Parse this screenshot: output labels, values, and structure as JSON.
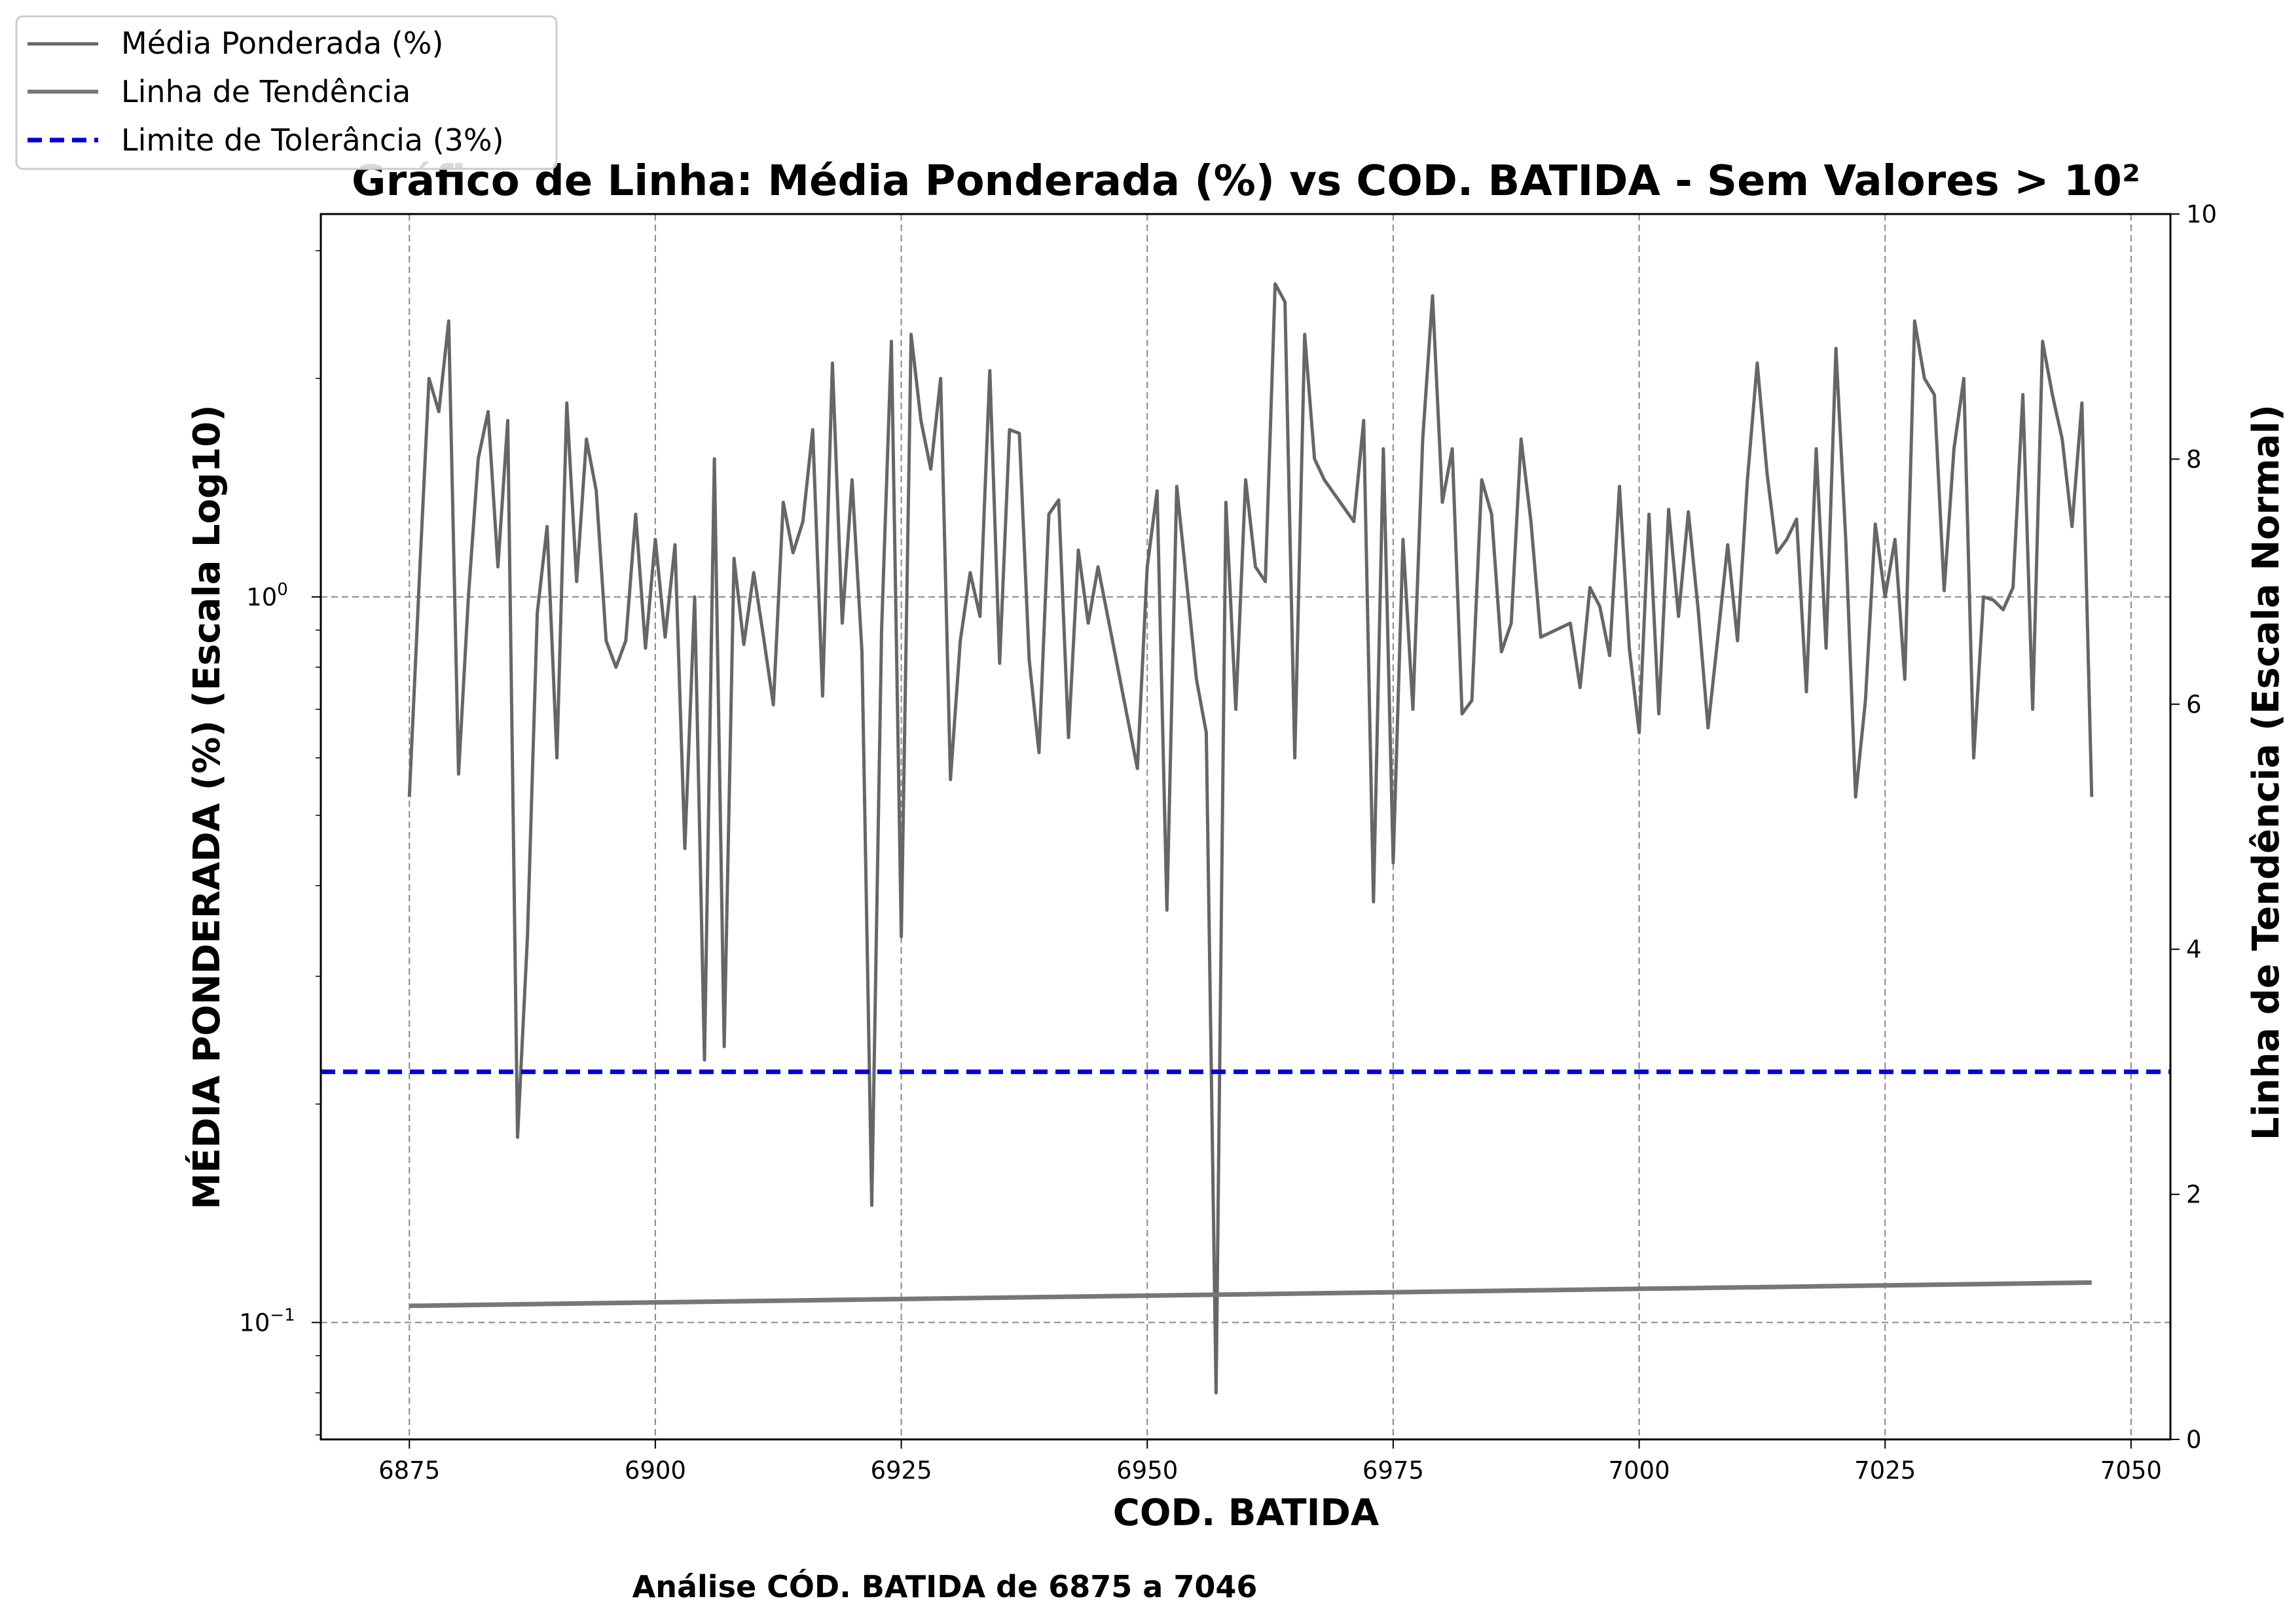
{
  "chart_data": {
    "type": "line",
    "title": "Gráfico de Linha: Média Ponderada (%) vs COD. BATIDA - Sem Valores > 10²",
    "subtitle": "Análise CÓD. BATIDA de 6875 a 7046",
    "xlabel": "COD. BATIDA",
    "ylabel": "MÉDIA PONDERADA (%) (Escala Log10)",
    "y2label": "Linha de Tendência (Escala Normal)",
    "xlim": [
      6866,
      7054
    ],
    "xticks": [
      6875,
      6900,
      6925,
      6950,
      6975,
      7000,
      7025,
      7050
    ],
    "xtick_labels": [
      "6875",
      "6900",
      "6925",
      "6950",
      "6975",
      "7000",
      "7025",
      "7050"
    ],
    "ylim": [
      0.069,
      3.37
    ],
    "yscale": "log",
    "yticks": [
      0.1,
      1.0
    ],
    "ytick_labels_log": [
      {
        "base": "10",
        "exp": "−1"
      },
      {
        "base": "10",
        "exp": "0"
      }
    ],
    "y2lim": [
      0,
      10
    ],
    "y2ticks": [
      0,
      2,
      4,
      6,
      8,
      10
    ],
    "y2tick_labels": [
      "0",
      "2",
      "4",
      "6",
      "8",
      "10"
    ],
    "grid": true,
    "legend_position": "top-left",
    "colors": {
      "series": "#666666",
      "trend": "#777777",
      "limit": "#0000dd",
      "grid": "#888888"
    },
    "series": [
      {
        "name": "Média Ponderada (%)",
        "x": [
          6875,
          6876,
          6877,
          6878,
          6879,
          6880,
          6881,
          6882,
          6883,
          6884,
          6885,
          6886,
          6887,
          6888,
          6889,
          6890,
          6891,
          6892,
          6893,
          6894,
          6895,
          6896,
          6897,
          6898,
          6899,
          6900,
          6901,
          6902,
          6903,
          6904,
          6905,
          6906,
          6907,
          6908,
          6909,
          6910,
          6911,
          6912,
          6913,
          6914,
          6915,
          6916,
          6917,
          6918,
          6919,
          6920,
          6921,
          6922,
          6923,
          6924,
          6925,
          6926,
          6927,
          6928,
          6929,
          6930,
          6931,
          6932,
          6933,
          6934,
          6935,
          6936,
          6937,
          6938,
          6939,
          6940,
          6941,
          6942,
          6943,
          6944,
          6945,
          6949,
          6950,
          6951,
          6952,
          6953,
          6954,
          6955,
          6956,
          6957,
          6958,
          6959,
          6960,
          6961,
          6962,
          6963,
          6964,
          6965,
          6966,
          6967,
          6968,
          6971,
          6972,
          6973,
          6974,
          6975,
          6976,
          6977,
          6978,
          6979,
          6980,
          6981,
          6982,
          6983,
          6984,
          6985,
          6986,
          6987,
          6988,
          6989,
          6990,
          6993,
          6994,
          6995,
          6996,
          6997,
          6998,
          6999,
          7000,
          7001,
          7002,
          7003,
          7004,
          7005,
          7006,
          7007,
          7008,
          7009,
          7010,
          7011,
          7012,
          7013,
          7014,
          7015,
          7016,
          7017,
          7018,
          7019,
          7020,
          7021,
          7022,
          7023,
          7024,
          7025,
          7026,
          7027,
          7028,
          7029,
          7030,
          7031,
          7032,
          7033,
          7034,
          7035,
          7036,
          7037,
          7038,
          7039,
          7040,
          7041,
          7042,
          7043,
          7044,
          7045,
          7046
        ],
        "y": [
          0.53,
          1.05,
          2.0,
          1.8,
          2.4,
          0.57,
          1.0,
          1.55,
          1.8,
          1.1,
          1.75,
          0.18,
          0.34,
          0.95,
          1.25,
          0.6,
          1.85,
          1.05,
          1.65,
          1.4,
          0.87,
          0.8,
          0.87,
          1.3,
          0.85,
          1.2,
          0.88,
          1.18,
          0.45,
          1.0,
          0.23,
          1.55,
          0.24,
          1.13,
          0.86,
          1.08,
          0.88,
          0.71,
          1.35,
          1.15,
          1.27,
          1.7,
          0.73,
          2.1,
          0.92,
          1.45,
          0.84,
          0.145,
          0.9,
          2.25,
          0.34,
          2.3,
          1.75,
          1.5,
          2.0,
          0.56,
          0.87,
          1.08,
          0.94,
          2.05,
          0.81,
          1.7,
          1.68,
          0.82,
          0.61,
          1.3,
          1.36,
          0.64,
          1.16,
          0.92,
          1.1,
          0.58,
          1.1,
          1.4,
          0.37,
          1.42,
          1.05,
          0.77,
          0.65,
          0.08,
          1.35,
          0.7,
          1.45,
          1.1,
          1.05,
          2.7,
          2.55,
          0.6,
          2.3,
          1.55,
          1.45,
          1.27,
          1.75,
          0.38,
          1.6,
          0.43,
          1.2,
          0.7,
          1.65,
          2.6,
          1.35,
          1.6,
          0.69,
          0.72,
          1.45,
          1.3,
          0.84,
          0.92,
          1.65,
          1.27,
          0.88,
          0.92,
          0.75,
          1.03,
          0.97,
          0.83,
          1.42,
          0.85,
          0.65,
          1.3,
          0.69,
          1.32,
          0.94,
          1.31,
          0.96,
          0.66,
          0.88,
          1.18,
          0.87,
          1.45,
          2.1,
          1.48,
          1.15,
          1.2,
          1.28,
          0.74,
          1.6,
          0.85,
          2.2,
          1.2,
          0.53,
          0.72,
          1.26,
          1.0,
          1.2,
          0.77,
          2.4,
          2.0,
          1.9,
          1.02,
          1.6,
          2.0,
          0.6,
          1.0,
          0.99,
          0.96,
          1.03,
          1.9,
          0.7,
          2.25,
          1.9,
          1.65,
          1.25,
          1.85,
          0.53
        ]
      },
      {
        "name": "Linha de Tendência",
        "axis": "right",
        "x": [
          6875,
          7046
        ],
        "y": [
          1.09,
          1.28
        ]
      },
      {
        "name": "Limite de Tolerância (3%)",
        "axis": "right",
        "style": "dashed",
        "y_const": 3.0
      }
    ]
  }
}
